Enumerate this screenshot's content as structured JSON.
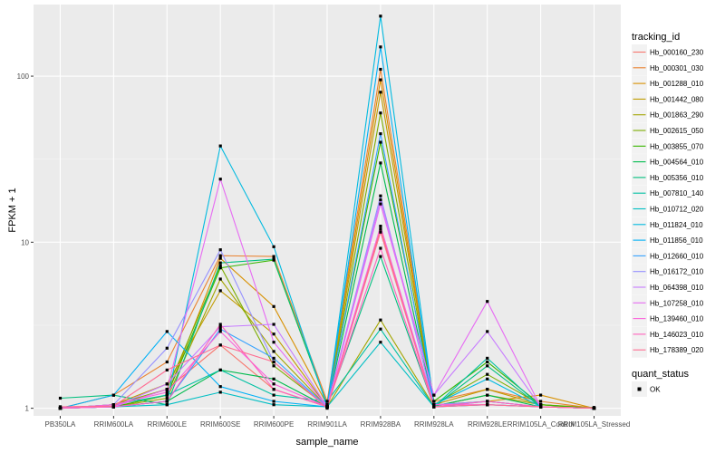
{
  "chart_data": {
    "type": "line",
    "title": "",
    "xlabel": "sample_name",
    "ylabel": "FPKM + 1",
    "y_scale": "log10",
    "ylim": [
      0.9,
      270
    ],
    "y_ticks": [
      1,
      10,
      100
    ],
    "y_tick_labels": [
      "1",
      "10",
      "100"
    ],
    "grid": true,
    "legend_position": "right",
    "categories": [
      "PB350LA",
      "RRIM600LA",
      "RRIM600LE",
      "RRIM600SE",
      "RRIM600PE",
      "RRIM901LA",
      "RRIM928BA",
      "RRIM928LA",
      "RRIM928LE",
      "RRIM105LA_Control",
      "RRIM105LA_Stressed"
    ],
    "legend_title": "tracking_id",
    "point_legend_title": "quant_status",
    "point_legend_label": "OK",
    "series": [
      {
        "name": "Hb_000160_230",
        "color": "#F8766D",
        "values": [
          1.02,
          1.03,
          1.3,
          2.4,
          1.3,
          1.02,
          12,
          1.05,
          1.1,
          1.02,
          1.01
        ]
      },
      {
        "name": "Hb_000301_030",
        "color": "#EA8331",
        "values": [
          1.0,
          1.2,
          1.9,
          8.3,
          8.2,
          1.1,
          110,
          1.1,
          1.3,
          1.1,
          1.0
        ]
      },
      {
        "name": "Hb_001288_010",
        "color": "#D89000",
        "values": [
          1.0,
          1.02,
          1.2,
          8.0,
          4.1,
          1.05,
          95,
          1.05,
          1.1,
          1.2,
          1.0
        ]
      },
      {
        "name": "Hb_001442_080",
        "color": "#C09B00",
        "values": [
          1.0,
          1.05,
          1.4,
          5.1,
          2.8,
          1.02,
          80,
          1.05,
          1.3,
          1.05,
          1.01
        ]
      },
      {
        "name": "Hb_001863_290",
        "color": "#A3A500",
        "values": [
          1.0,
          1.02,
          1.15,
          6.0,
          2.2,
          1.02,
          3.4,
          1.03,
          1.2,
          1.05,
          1.0
        ]
      },
      {
        "name": "Hb_002615_050",
        "color": "#7CAE00",
        "values": [
          1.0,
          1.05,
          1.3,
          7.2,
          1.8,
          1.02,
          60,
          1.05,
          1.6,
          1.05,
          1.0
        ]
      },
      {
        "name": "Hb_003855_070",
        "color": "#39B600",
        "values": [
          1.0,
          1.02,
          1.2,
          7.0,
          7.8,
          1.05,
          40,
          1.1,
          1.9,
          1.05,
          1.0
        ]
      },
      {
        "name": "Hb_004564_010",
        "color": "#00BB4E",
        "values": [
          1.0,
          1.02,
          1.1,
          1.7,
          1.5,
          1.02,
          30,
          1.03,
          1.2,
          1.02,
          1.0
        ]
      },
      {
        "name": "Hb_005356_010",
        "color": "#00BF7D",
        "values": [
          1.15,
          1.2,
          1.05,
          7.5,
          7.9,
          1.05,
          8.2,
          1.02,
          1.8,
          1.02,
          1.0
        ]
      },
      {
        "name": "Hb_007810_140",
        "color": "#00C1A3",
        "values": [
          1.0,
          1.05,
          1.2,
          1.7,
          1.2,
          1.1,
          3.0,
          1.02,
          2.0,
          1.02,
          1.0
        ]
      },
      {
        "name": "Hb_010712_020",
        "color": "#00BFC4",
        "values": [
          1.0,
          1.02,
          1.05,
          1.25,
          1.05,
          1.02,
          2.5,
          1.02,
          1.05,
          1.02,
          1.0
        ]
      },
      {
        "name": "Hb_011824_010",
        "color": "#00BAE0",
        "values": [
          1.0,
          1.02,
          1.1,
          38,
          9.4,
          1.02,
          230,
          1.05,
          1.5,
          1.02,
          1.0
        ]
      },
      {
        "name": "Hb_011856_010",
        "color": "#00B0F6",
        "values": [
          1.0,
          1.2,
          2.9,
          1.35,
          1.1,
          1.02,
          150,
          1.02,
          1.1,
          1.02,
          1.0
        ]
      },
      {
        "name": "Hb_012660_010",
        "color": "#35A2FF",
        "values": [
          1.0,
          1.02,
          1.1,
          3.0,
          2.0,
          1.02,
          45,
          1.02,
          1.05,
          1.02,
          1.0
        ]
      },
      {
        "name": "Hb_016172_010",
        "color": "#9590FF",
        "values": [
          1.0,
          1.05,
          2.3,
          9.0,
          1.9,
          1.02,
          19,
          1.05,
          1.1,
          1.02,
          1.0
        ]
      },
      {
        "name": "Hb_064398_010",
        "color": "#C77CFF",
        "values": [
          1.0,
          1.02,
          1.4,
          3.1,
          3.2,
          1.02,
          18,
          1.2,
          2.9,
          1.02,
          1.0
        ]
      },
      {
        "name": "Hb_107258_010",
        "color": "#E76BF3",
        "values": [
          1.0,
          1.02,
          1.3,
          24,
          2.5,
          1.02,
          17,
          1.2,
          4.4,
          1.02,
          1.0
        ]
      },
      {
        "name": "Hb_139460_010",
        "color": "#FA62DB",
        "values": [
          1.0,
          1.05,
          1.25,
          2.9,
          1.4,
          1.02,
          12.5,
          1.05,
          1.05,
          1.02,
          1.0
        ]
      },
      {
        "name": "Hb_146023_010",
        "color": "#FF62BC",
        "values": [
          1.0,
          1.02,
          1.1,
          3.2,
          1.3,
          1.02,
          9.2,
          1.02,
          1.1,
          1.02,
          1.0
        ]
      },
      {
        "name": "Hb_178389_020",
        "color": "#FF6C91",
        "values": [
          1.02,
          1.03,
          1.7,
          2.4,
          1.9,
          1.0,
          11.5,
          1.02,
          1.05,
          1.02,
          1.0
        ]
      }
    ]
  }
}
